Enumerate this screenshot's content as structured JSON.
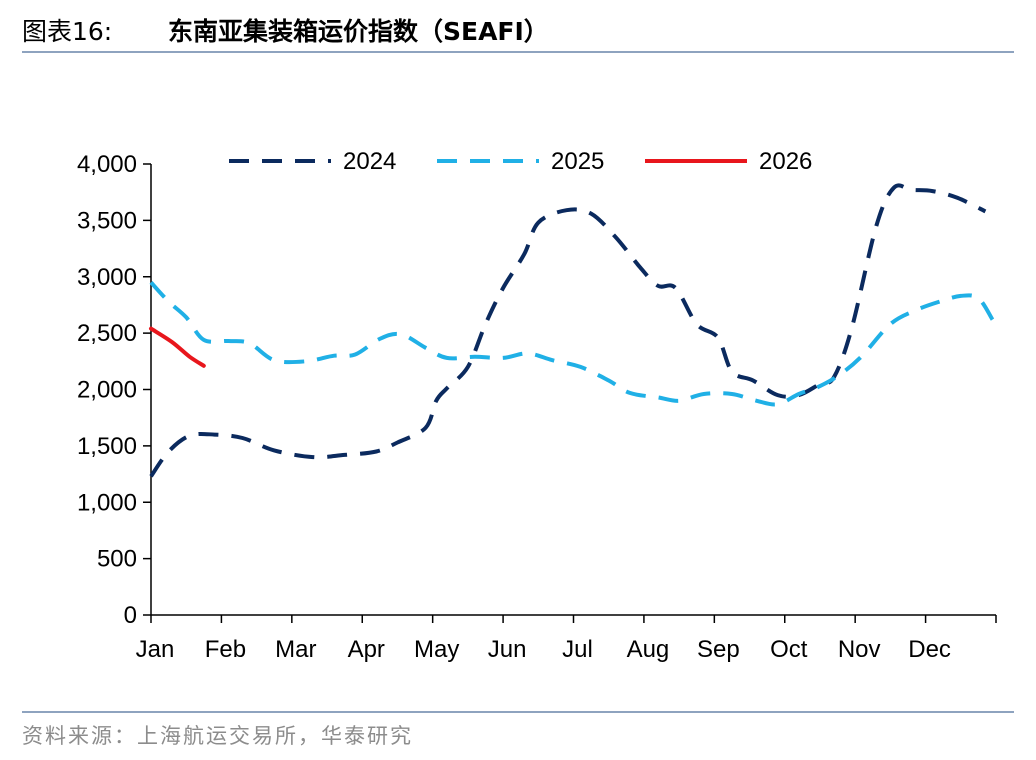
{
  "header": {
    "figure_label": "图表16:",
    "title": "东南亚集装箱运价指数（SEAFI）"
  },
  "footer": {
    "source": "资料来源：上海航运交易所，华泰研究"
  },
  "chart_data": {
    "type": "line",
    "title": "东南亚集装箱运价指数（SEAFI）",
    "xlabel": "",
    "ylabel": "",
    "categories": [
      "Jan",
      "Feb",
      "Mar",
      "Apr",
      "May",
      "Jun",
      "Jul",
      "Aug",
      "Sep",
      "Oct",
      "Nov",
      "Dec"
    ],
    "ylim": [
      0,
      4000
    ],
    "yticks": [
      0,
      500,
      1000,
      1500,
      2000,
      2500,
      3000,
      3500,
      4000
    ],
    "ytick_labels": [
      "0",
      "500",
      "1,000",
      "1,500",
      "2,000",
      "2,500",
      "3,000",
      "3,500",
      "4,000"
    ],
    "x_unit": "month index (0 = start of Jan, 12 = end of Dec)",
    "grid": false,
    "legend": "top",
    "series": [
      {
        "name": "2024",
        "color": "#0b2a5e",
        "style": "dashed",
        "points": [
          [
            0.0,
            1230
          ],
          [
            0.25,
            1450
          ],
          [
            0.55,
            1590
          ],
          [
            0.9,
            1600
          ],
          [
            1.3,
            1570
          ],
          [
            1.75,
            1460
          ],
          [
            2.3,
            1400
          ],
          [
            2.75,
            1420
          ],
          [
            3.2,
            1450
          ],
          [
            3.5,
            1530
          ],
          [
            3.9,
            1660
          ],
          [
            4.05,
            1900
          ],
          [
            4.2,
            2010
          ],
          [
            4.5,
            2200
          ],
          [
            4.75,
            2580
          ],
          [
            5.0,
            2900
          ],
          [
            5.3,
            3200
          ],
          [
            5.5,
            3480
          ],
          [
            5.9,
            3590
          ],
          [
            6.25,
            3560
          ],
          [
            6.6,
            3350
          ],
          [
            6.95,
            3080
          ],
          [
            7.2,
            2920
          ],
          [
            7.45,
            2900
          ],
          [
            7.75,
            2580
          ],
          [
            8.05,
            2460
          ],
          [
            8.25,
            2160
          ],
          [
            8.55,
            2080
          ],
          [
            8.9,
            1950
          ],
          [
            9.2,
            1950
          ],
          [
            9.5,
            2050
          ],
          [
            9.7,
            2110
          ],
          [
            9.95,
            2540
          ],
          [
            10.3,
            3450
          ],
          [
            10.55,
            3790
          ],
          [
            10.8,
            3770
          ],
          [
            11.1,
            3760
          ],
          [
            11.45,
            3700
          ],
          [
            11.85,
            3580
          ]
        ]
      },
      {
        "name": "2025",
        "color": "#20b0e6",
        "style": "dashed",
        "points": [
          [
            0.0,
            2950
          ],
          [
            0.25,
            2780
          ],
          [
            0.5,
            2640
          ],
          [
            0.75,
            2440
          ],
          [
            1.1,
            2430
          ],
          [
            1.4,
            2410
          ],
          [
            1.75,
            2260
          ],
          [
            2.2,
            2250
          ],
          [
            2.6,
            2300
          ],
          [
            2.9,
            2310
          ],
          [
            3.25,
            2450
          ],
          [
            3.55,
            2490
          ],
          [
            3.9,
            2370
          ],
          [
            4.2,
            2280
          ],
          [
            4.6,
            2290
          ],
          [
            5.0,
            2280
          ],
          [
            5.35,
            2320
          ],
          [
            5.7,
            2260
          ],
          [
            6.1,
            2200
          ],
          [
            6.5,
            2080
          ],
          [
            6.8,
            1970
          ],
          [
            7.2,
            1930
          ],
          [
            7.5,
            1900
          ],
          [
            7.85,
            1960
          ],
          [
            8.25,
            1960
          ],
          [
            8.6,
            1900
          ],
          [
            8.9,
            1870
          ],
          [
            9.2,
            1960
          ],
          [
            9.5,
            2030
          ],
          [
            9.8,
            2140
          ],
          [
            10.1,
            2300
          ],
          [
            10.5,
            2580
          ],
          [
            10.85,
            2700
          ],
          [
            11.2,
            2780
          ],
          [
            11.5,
            2830
          ],
          [
            11.75,
            2810
          ],
          [
            11.95,
            2620
          ]
        ]
      },
      {
        "name": "2026",
        "color": "#e8161c",
        "style": "solid",
        "points": [
          [
            0.0,
            2540
          ],
          [
            0.3,
            2420
          ],
          [
            0.55,
            2290
          ],
          [
            0.75,
            2210
          ]
        ]
      }
    ]
  }
}
